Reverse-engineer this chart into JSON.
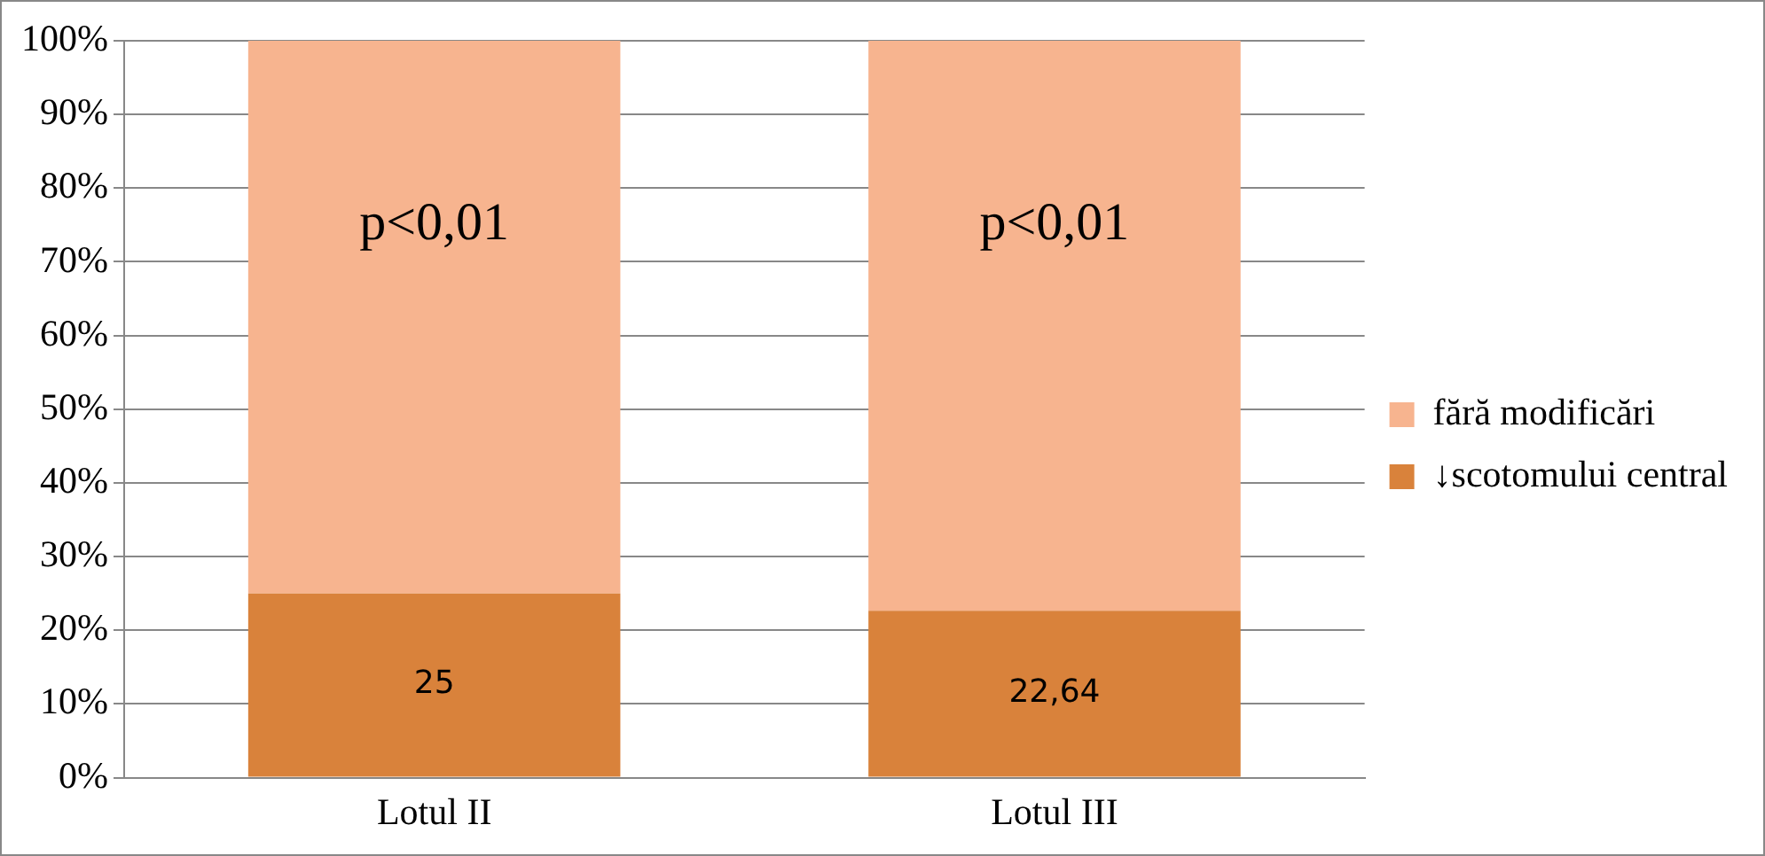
{
  "chart_data": {
    "type": "bar",
    "stacked": true,
    "categories": [
      "Lotul II",
      "Lotul III"
    ],
    "series": [
      {
        "name": "↓scotomului central",
        "color": "#d9823b",
        "values": [
          25,
          22.64
        ],
        "value_labels": [
          "25",
          "22,64"
        ]
      },
      {
        "name": "fără modificări",
        "color": "#f7b48f",
        "values": [
          75,
          77.4
        ]
      }
    ],
    "ylim": [
      0,
      100
    ],
    "yticks": [
      {
        "value": 0,
        "label": "0%"
      },
      {
        "value": 10,
        "label": "10%"
      },
      {
        "value": 20,
        "label": "20%"
      },
      {
        "value": 30,
        "label": "30%"
      },
      {
        "value": 40,
        "label": "40%"
      },
      {
        "value": 50,
        "label": "50%"
      },
      {
        "value": 60,
        "label": "60%"
      },
      {
        "value": 70,
        "label": "70%"
      },
      {
        "value": 80,
        "label": "80%"
      },
      {
        "value": 90,
        "label": "90%"
      },
      {
        "value": 100,
        "label": "100%"
      }
    ],
    "grid": "y",
    "legend": "right",
    "annotations": [
      "p<0,01",
      "p<0,01"
    ]
  }
}
